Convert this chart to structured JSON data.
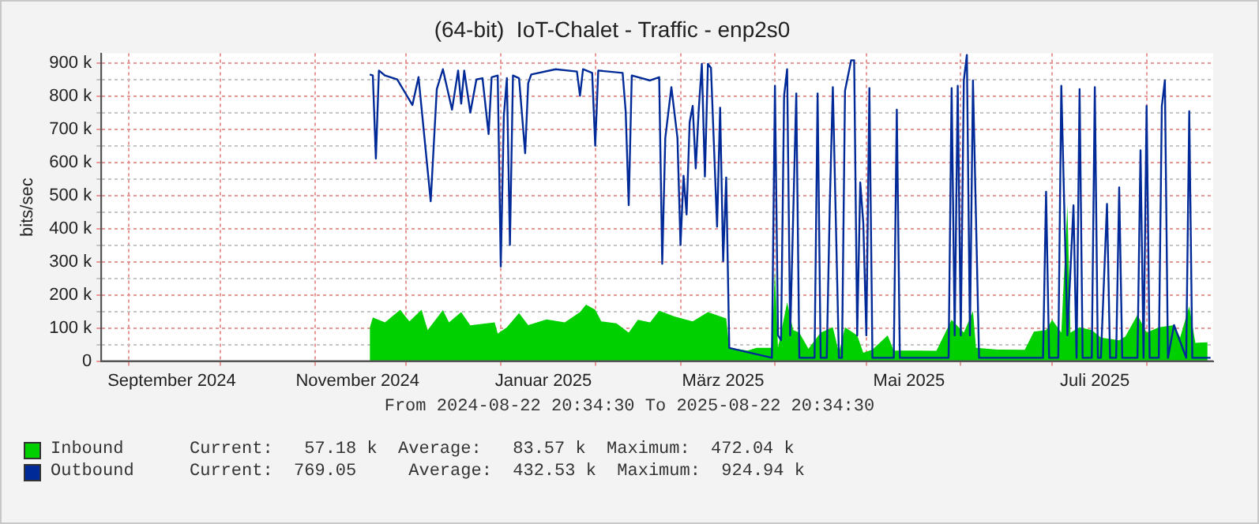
{
  "chart_data": {
    "type": "line",
    "title": "(64-bit)  IoT-Chalet - Traffic - enp2s0",
    "ylabel": "bits/sec",
    "xlim": [
      "2024-08-22T20:34",
      "2025-08-22T20:34"
    ],
    "xticks": [
      {
        "value": "2024-09-01",
        "label": null
      },
      {
        "value": "2024-09-15",
        "label": "September 2024"
      },
      {
        "value": "2024-10-01",
        "label": null
      },
      {
        "value": "2024-11-01",
        "label": null
      },
      {
        "value": "2024-11-15",
        "label": "November 2024"
      },
      {
        "value": "2024-12-01",
        "label": null
      },
      {
        "value": "2025-01-01",
        "label": null
      },
      {
        "value": "2025-01-15",
        "label": "Januar 2025"
      },
      {
        "value": "2025-02-01",
        "label": null
      },
      {
        "value": "2025-03-01",
        "label": null
      },
      {
        "value": "2025-03-15",
        "label": "März 2025"
      },
      {
        "value": "2025-04-01",
        "label": null
      },
      {
        "value": "2025-05-01",
        "label": null
      },
      {
        "value": "2025-05-15",
        "label": "Mai 2025"
      },
      {
        "value": "2025-06-01",
        "label": null
      },
      {
        "value": "2025-07-01",
        "label": null
      },
      {
        "value": "2025-07-15",
        "label": "Juli 2025"
      },
      {
        "value": "2025-08-01",
        "label": null
      }
    ],
    "ylim": [
      0,
      930000
    ],
    "yticks": [
      {
        "value": 0,
        "label": "0"
      },
      {
        "value": 50000,
        "label": null
      },
      {
        "value": 100000,
        "label": "100 k"
      },
      {
        "value": 150000,
        "label": null
      },
      {
        "value": 200000,
        "label": "200 k"
      },
      {
        "value": 250000,
        "label": null
      },
      {
        "value": 300000,
        "label": "300 k"
      },
      {
        "value": 350000,
        "label": null
      },
      {
        "value": 400000,
        "label": "400 k"
      },
      {
        "value": 450000,
        "label": null
      },
      {
        "value": 500000,
        "label": "500 k"
      },
      {
        "value": 550000,
        "label": null
      },
      {
        "value": 600000,
        "label": "600 k"
      },
      {
        "value": 650000,
        "label": null
      },
      {
        "value": 700000,
        "label": "700 k"
      },
      {
        "value": 750000,
        "label": null
      },
      {
        "value": 800000,
        "label": "800 k"
      },
      {
        "value": 850000,
        "label": null
      },
      {
        "value": 900000,
        "label": "900 k"
      }
    ],
    "grid": true,
    "legend": "bottom",
    "annotations": [
      "From 2024-08-22 20:34:30 To 2025-08-22 20:34:30",
      "Current:   57.18 k  Average:   83.57 k  Maximum:  472.04 k",
      "Current:  769.05     Average:  432.53 k  Maximum:  924.94 k"
    ],
    "series": [
      {
        "name": "Inbound",
        "type": "area",
        "color": "#00cf00",
        "x": [
          "2024-11-19",
          "2024-11-20",
          "2024-11-24",
          "2024-11-29",
          "2024-12-02",
          "2024-12-06",
          "2024-12-08",
          "2024-12-13",
          "2024-12-15",
          "2024-12-19",
          "2024-12-22",
          "2024-12-30",
          "2024-12-31",
          "2025-01-03",
          "2025-01-07",
          "2025-01-10",
          "2025-01-16",
          "2025-01-22",
          "2025-01-27",
          "2025-01-29",
          "2025-02-01",
          "2025-02-03",
          "2025-02-08",
          "2025-02-12",
          "2025-02-15",
          "2025-02-19",
          "2025-02-22",
          "2025-02-27",
          "2025-03-05",
          "2025-03-10",
          "2025-03-16",
          "2025-03-17",
          "2025-03-23",
          "2025-03-26",
          "2025-03-31",
          "2025-04-01",
          "2025-04-02",
          "2025-04-05",
          "2025-04-07",
          "2025-04-09",
          "2025-04-12",
          "2025-04-16",
          "2025-04-20",
          "2025-04-22",
          "2025-04-24",
          "2025-04-28",
          "2025-04-30",
          "2025-05-03",
          "2025-05-08",
          "2025-05-10",
          "2025-05-17",
          "2025-05-24",
          "2025-05-29",
          "2025-06-02",
          "2025-06-05",
          "2025-06-06",
          "2025-06-13",
          "2025-06-22",
          "2025-06-25",
          "2025-06-29",
          "2025-07-01",
          "2025-07-04",
          "2025-07-06",
          "2025-07-07",
          "2025-07-10",
          "2025-07-14",
          "2025-07-17",
          "2025-07-23",
          "2025-07-25",
          "2025-07-29",
          "2025-08-01",
          "2025-08-05",
          "2025-08-10",
          "2025-08-12",
          "2025-08-15",
          "2025-08-17",
          "2025-08-21"
        ],
        "values": [
          101000,
          132000,
          117000,
          155000,
          120000,
          155000,
          94000,
          154000,
          117000,
          148000,
          108000,
          117000,
          83000,
          102000,
          145000,
          109000,
          126000,
          117000,
          148000,
          171000,
          155000,
          120000,
          114000,
          86000,
          125000,
          117000,
          152000,
          135000,
          120000,
          148000,
          129000,
          40000,
          32000,
          40000,
          40000,
          274000,
          40000,
          178000,
          94000,
          86000,
          37000,
          86000,
          102000,
          25000,
          102000,
          78000,
          25000,
          35000,
          78000,
          32000,
          32000,
          31000,
          125000,
          86000,
          151000,
          40000,
          35000,
          34000,
          89000,
          94000,
          125000,
          86000,
          472000,
          86000,
          102000,
          94000,
          71000,
          63000,
          74000,
          140000,
          86000,
          102000,
          109000,
          71000,
          166000,
          55000,
          57000
        ]
      },
      {
        "name": "Outbound",
        "type": "line",
        "color": "#002a97",
        "x": [
          "2024-11-19",
          "2024-11-20",
          "2024-11-21",
          "2024-11-22",
          "2024-11-24",
          "2024-11-28",
          "2024-12-03",
          "2024-12-05",
          "2024-12-09",
          "2024-12-11",
          "2024-12-13",
          "2024-12-16",
          "2024-12-18",
          "2024-12-19",
          "2024-12-20",
          "2024-12-22",
          "2024-12-24",
          "2024-12-26",
          "2024-12-28",
          "2024-12-29",
          "2024-12-31",
          "2025-01-01",
          "2025-01-02",
          "2025-01-03",
          "2025-01-04",
          "2025-01-05",
          "2025-01-07",
          "2025-01-09",
          "2025-01-10",
          "2025-01-11",
          "2025-01-19",
          "2025-01-26",
          "2025-01-27",
          "2025-01-28",
          "2025-01-31",
          "2025-02-01",
          "2025-02-02",
          "2025-02-10",
          "2025-02-11",
          "2025-02-12",
          "2025-02-13",
          "2025-02-19",
          "2025-02-22",
          "2025-02-23",
          "2025-02-24",
          "2025-02-26",
          "2025-02-28",
          "2025-03-01",
          "2025-03-02",
          "2025-03-03",
          "2025-03-04",
          "2025-03-05",
          "2025-03-06",
          "2025-03-07",
          "2025-03-08",
          "2025-03-09",
          "2025-03-10",
          "2025-03-11",
          "2025-03-13",
          "2025-03-14",
          "2025-03-15",
          "2025-03-16",
          "2025-03-17",
          "2025-03-31",
          "2025-04-01",
          "2025-04-02",
          "2025-04-03",
          "2025-04-04",
          "2025-04-05",
          "2025-04-06",
          "2025-04-08",
          "2025-04-09",
          "2025-04-14",
          "2025-04-15",
          "2025-04-16",
          "2025-04-18",
          "2025-04-19",
          "2025-04-20",
          "2025-04-22",
          "2025-04-23",
          "2025-04-24",
          "2025-04-26",
          "2025-04-27",
          "2025-04-28",
          "2025-04-29",
          "2025-04-30",
          "2025-05-01",
          "2025-05-02",
          "2025-05-03",
          "2025-05-10",
          "2025-05-11",
          "2025-05-12",
          "2025-05-28",
          "2025-05-29",
          "2025-05-30",
          "2025-05-31",
          "2025-06-01",
          "2025-06-02",
          "2025-06-03",
          "2025-06-04",
          "2025-06-05",
          "2025-06-07",
          "2025-06-28",
          "2025-06-29",
          "2025-06-30",
          "2025-07-03",
          "2025-07-04",
          "2025-07-06",
          "2025-07-08",
          "2025-07-09",
          "2025-07-10",
          "2025-07-11",
          "2025-07-14",
          "2025-07-15",
          "2025-07-16",
          "2025-07-17",
          "2025-07-19",
          "2025-07-20",
          "2025-07-22",
          "2025-07-23",
          "2025-07-24",
          "2025-07-29",
          "2025-07-30",
          "2025-07-31",
          "2025-08-01",
          "2025-08-02",
          "2025-08-05",
          "2025-08-06",
          "2025-08-07",
          "2025-08-08",
          "2025-08-10",
          "2025-08-14",
          "2025-08-15",
          "2025-08-16",
          "2025-08-22"
        ],
        "values": [
          866000,
          863000,
          612000,
          878000,
          863000,
          851000,
          774000,
          858000,
          483000,
          822000,
          882000,
          760000,
          878000,
          778000,
          878000,
          751000,
          851000,
          855000,
          686000,
          858000,
          863000,
          286000,
          740000,
          855000,
          351000,
          863000,
          855000,
          628000,
          840000,
          866000,
          882000,
          875000,
          802000,
          882000,
          871000,
          651000,
          878000,
          871000,
          755000,
          471000,
          863000,
          848000,
          858000,
          294000,
          674000,
          828000,
          674000,
          351000,
          560000,
          443000,
          722000,
          771000,
          582000,
          763000,
          898000,
          558000,
          898000,
          886000,
          406000,
          766000,
          302000,
          555000,
          40000,
          10000,
          832000,
          78000,
          63000,
          802000,
          882000,
          78000,
          809000,
          10000,
          10000,
          809000,
          10000,
          10000,
          471000,
          828000,
          10000,
          10000,
          817000,
          909000,
          909000,
          78000,
          540000,
          417000,
          78000,
          825000,
          10000,
          10000,
          760000,
          10000,
          10000,
          825000,
          78000,
          832000,
          78000,
          848000,
          925000,
          78000,
          848000,
          10000,
          10000,
          512000,
          10000,
          10000,
          832000,
          78000,
          471000,
          10000,
          822000,
          10000,
          10000,
          828000,
          10000,
          10000,
          475000,
          10000,
          10000,
          525000,
          10000,
          10000,
          637000,
          10000,
          771000,
          10000,
          10000,
          771000,
          848000,
          10000,
          109000,
          10000,
          755000,
          10000,
          10000
        ]
      }
    ]
  }
}
